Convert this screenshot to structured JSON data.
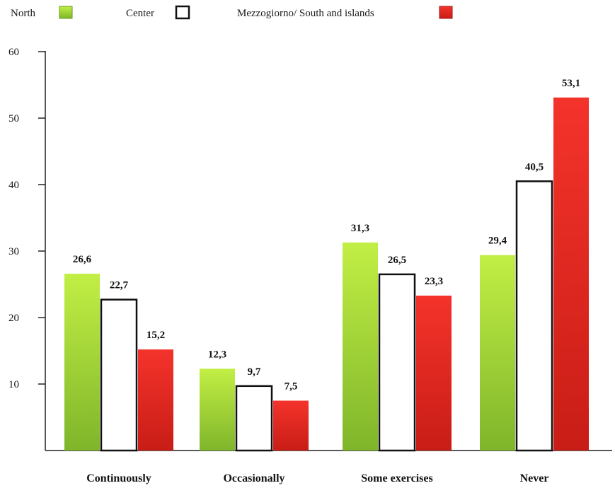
{
  "chart_data": {
    "type": "bar",
    "title": "",
    "xlabel": "",
    "ylabel": "",
    "categories": [
      "Continuously",
      "Occasionally",
      "Some exercises",
      "Never"
    ],
    "series": [
      {
        "name": "North",
        "values": [
          26.6,
          12.3,
          31.3,
          29.4
        ],
        "labels": [
          "26,6",
          "12,3",
          "31,3",
          "29,4"
        ],
        "color": "#9acd2a"
      },
      {
        "name": "Center",
        "values": [
          22.7,
          9.7,
          26.5,
          40.5
        ],
        "labels": [
          "22,7",
          "9,7",
          "26,5",
          "40,5"
        ],
        "color": "#ffffff"
      },
      {
        "name": "Mezzogiorno/ South and islands",
        "values": [
          15.2,
          7.5,
          23.3,
          53.1
        ],
        "labels": [
          "15,2",
          "7,5",
          "23,3",
          "53,1"
        ],
        "color": "#e8281f"
      }
    ],
    "ylim": [
      0,
      60
    ],
    "yticks": [
      10,
      20,
      30,
      40,
      50,
      60
    ],
    "grid": false,
    "legend_position": "top-left"
  }
}
